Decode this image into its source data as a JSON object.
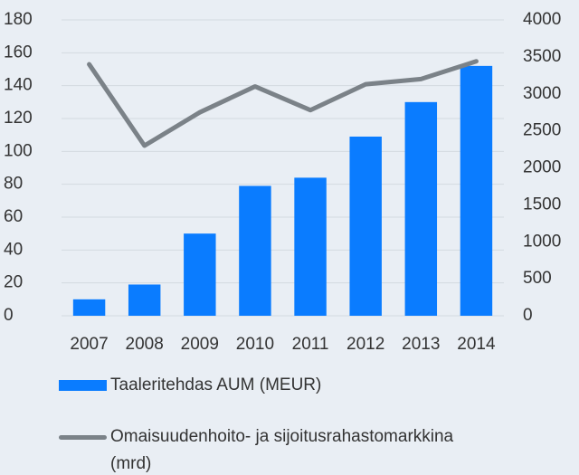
{
  "chart_data": {
    "type": "bar-line",
    "categories": [
      "2007",
      "2008",
      "2009",
      "2010",
      "2011",
      "2012",
      "2013",
      "2014"
    ],
    "series": [
      {
        "name": "Taaleritehdas AUM (MEUR)",
        "type": "bar",
        "color": "#0a7cff",
        "values": [
          10,
          19,
          50,
          79,
          84,
          109,
          130,
          152
        ]
      },
      {
        "name": "Omaisuudenhoito- ja sijoitusrahastomarkkina (mrd)",
        "type": "line",
        "axis": "y2",
        "color": "#7b8288",
        "values": [
          3400,
          2300,
          2750,
          3100,
          2780,
          3130,
          3200,
          3440
        ]
      }
    ],
    "ylim": [
      0,
      180
    ],
    "yticks": [
      0,
      20,
      40,
      60,
      80,
      100,
      120,
      140,
      160,
      180
    ],
    "y2lim": [
      0,
      4000
    ],
    "y2ticks": [
      0,
      500,
      1000,
      1500,
      2000,
      2500,
      3000,
      3500,
      4000
    ],
    "grid": true
  }
}
